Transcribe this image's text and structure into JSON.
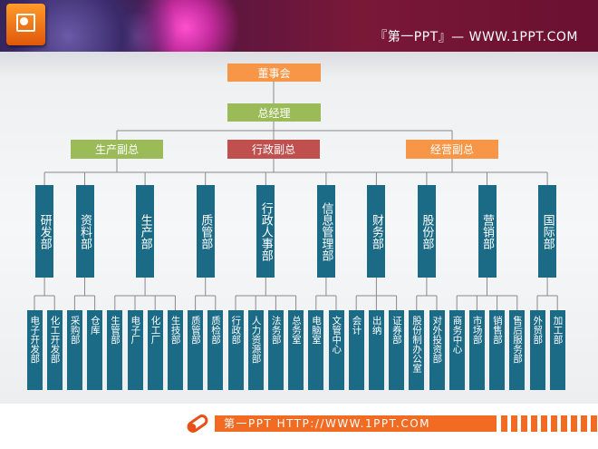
{
  "header": {
    "title": "『第一PPT』— WWW.1PPT.COM",
    "logo_icon": "powerpoint-icon"
  },
  "footer": {
    "text": "第一PPT HTTP://WWW.1PPT.COM",
    "icon": "pen-icon"
  },
  "colors": {
    "orange": "#f79646",
    "green": "#9bbb59",
    "red": "#c0504d",
    "teal": "#1b6a86",
    "line": "#8a8a8a"
  },
  "org": {
    "board": "董事会",
    "gm": "总经理",
    "vps": [
      {
        "label": "生产副总",
        "color": "green",
        "depts": [
          {
            "label": "研发部",
            "units": [
              "电子开发部",
              "化工开发部"
            ]
          },
          {
            "label": "资料部",
            "units": [
              "采购部",
              "仓库"
            ]
          },
          {
            "label": "生产部",
            "units": [
              "生管部",
              "电子厂",
              "化工厂",
              "生技部"
            ]
          },
          {
            "label": "质管部",
            "units": [
              "质管部",
              "质检部"
            ]
          }
        ]
      },
      {
        "label": "行政副总",
        "color": "red",
        "depts": [
          {
            "label": "行政人事部",
            "units": [
              "行政部",
              "人力资源部",
              "法务部",
              "总务室"
            ]
          },
          {
            "label": "信息管理部",
            "units": [
              "电脑室",
              "文管中心"
            ]
          }
        ]
      },
      {
        "label": "经营副总",
        "color": "orange",
        "depts": [
          {
            "label": "财务部",
            "units": [
              "会计",
              "出纳",
              "证券部"
            ]
          },
          {
            "label": "股份部",
            "units": [
              "股份制办公室",
              "对外投资部"
            ]
          },
          {
            "label": "营销部",
            "units": [
              "商务中心",
              "市场部",
              "销售部",
              "售后服务部"
            ]
          },
          {
            "label": "国际部",
            "units": [
              "外贸部",
              "加工部"
            ]
          }
        ]
      }
    ]
  }
}
